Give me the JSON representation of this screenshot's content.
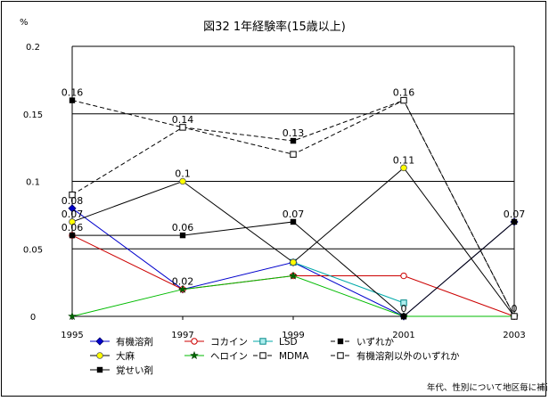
{
  "chart_data": {
    "type": "line",
    "title": "図32 1年経験率(15歳以上)",
    "ylabel": "%",
    "note": "年代、性別について地区毎に補正",
    "categories": [
      "1995",
      "1997",
      "1999",
      "2001",
      "2003"
    ],
    "ylim": [
      0,
      0.2
    ],
    "yticks": [
      "0",
      "0.05",
      "0.1",
      "0.15",
      "0.2"
    ],
    "grid": "horizontal",
    "legend_position": "bottom",
    "series": [
      {
        "name": "有機溶剤",
        "values": [
          0.08,
          0.02,
          0.04,
          0,
          0.07
        ],
        "color": "#0000cc",
        "marker": "diamond",
        "dash": "solid",
        "labels": [
          "0.08",
          "",
          "",
          "",
          ""
        ]
      },
      {
        "name": "コカイン",
        "values": [
          0.06,
          0.02,
          0.03,
          0.03,
          0
        ],
        "color": "#cc0000",
        "marker": "circle-open",
        "dash": "solid",
        "labels": [
          "",
          "",
          "",
          "",
          ""
        ]
      },
      {
        "name": "LSD",
        "values": [
          null,
          null,
          0.04,
          0.01,
          null
        ],
        "color": "#00aaaa",
        "marker": "square-cyan",
        "dash": "solid",
        "labels": [
          "",
          "",
          "",
          "",
          ""
        ]
      },
      {
        "name": "いずれか",
        "values": [
          0.16,
          0.14,
          0.13,
          0.16,
          0
        ],
        "color": "#000000",
        "marker": "square",
        "dash": "dashed",
        "labels": [
          "0.16",
          "0.14",
          "0.13",
          "0.16",
          "0"
        ]
      },
      {
        "name": "大麻",
        "values": [
          0.07,
          0.1,
          0.04,
          0.11,
          0
        ],
        "color": "#000000",
        "marker": "circle-yellow",
        "dash": "solid",
        "labels": [
          "0.07",
          "0.1",
          "",
          "0.11",
          ""
        ]
      },
      {
        "name": "ヘロイン",
        "values": [
          0,
          0.02,
          0.03,
          0,
          0
        ],
        "color": "#00bb00",
        "marker": "star",
        "dash": "solid",
        "labels": [
          "",
          "0.02",
          "",
          "",
          ""
        ]
      },
      {
        "name": "MDMA",
        "values": [
          null,
          null,
          null,
          null,
          null
        ],
        "color": "#000000",
        "marker": "square-open",
        "dash": "dashed",
        "labels": [
          "",
          "",
          "",
          "",
          ""
        ]
      },
      {
        "name": "有機溶剤以外のいずれか",
        "values": [
          0.09,
          0.14,
          0.12,
          0.16,
          0
        ],
        "color": "#000000",
        "marker": "square-open",
        "dash": "dashed",
        "labels": [
          "",
          "",
          "",
          "",
          ""
        ]
      },
      {
        "name": "覚せい剤",
        "values": [
          0.06,
          0.06,
          0.07,
          0,
          0.07
        ],
        "color": "#000000",
        "marker": "square",
        "dash": "solid",
        "labels": [
          "0.06",
          "0.06",
          "0.07",
          "0",
          "0.07"
        ]
      }
    ]
  }
}
